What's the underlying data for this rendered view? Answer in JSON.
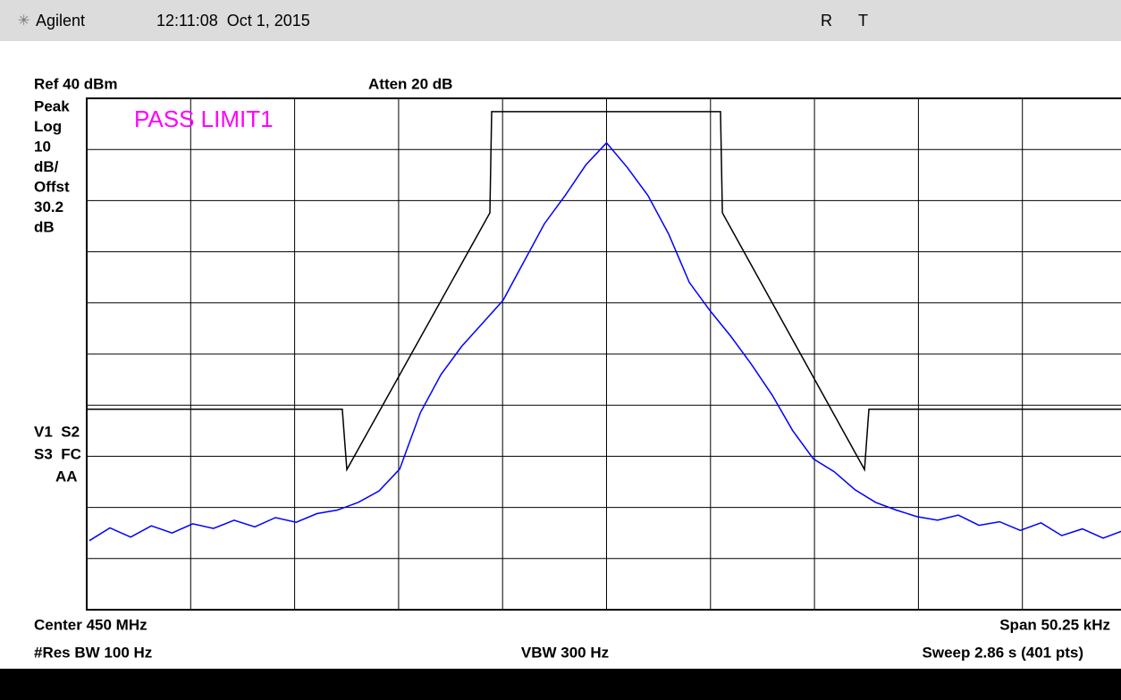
{
  "header": {
    "brand": "Agilent",
    "time": "12:11:08  Oct 1, 2015",
    "flags": [
      "R",
      "T"
    ]
  },
  "chart_data": {
    "type": "line",
    "ref": "Ref 40 dBm",
    "atten": "Atten 20 dB",
    "settings": [
      "Peak",
      "Log",
      "10",
      "dB/",
      "Offst",
      "30.2",
      "dB"
    ],
    "status": [
      "V1  S2",
      "S3  FC",
      "AA"
    ],
    "annotation": "PASS LIMIT1",
    "annotation_color": "#ff00ff",
    "footer": {
      "center": "Center 450 MHz",
      "span": "Span 50.25 kHz",
      "rbw": "#Res BW 100 Hz",
      "vbw": "VBW 300 Hz",
      "sweep": "Sweep 2.86 s (401 pts)"
    },
    "xlim": [
      -25.125,
      25.125
    ],
    "xticks": [
      -25.125,
      -20.1,
      -15.075,
      -10.05,
      -5.025,
      0,
      5.025,
      10.05,
      15.075,
      20.1,
      25.125
    ],
    "ylim": [
      -60,
      40
    ],
    "yticks": [
      -60,
      -50,
      -40,
      -30,
      -20,
      -10,
      0,
      10,
      20,
      30,
      40
    ],
    "grid": true,
    "series": [
      {
        "color": "#0000ff",
        "x": [
          -25,
          -24,
          -23,
          -22,
          -21,
          -20,
          -19,
          -18,
          -17,
          -16,
          -15,
          -14,
          -13,
          -12,
          -11,
          -10,
          -9,
          -8,
          -7,
          -6,
          -5,
          -4,
          -3,
          -2,
          -1,
          0,
          1,
          2,
          3,
          4,
          5,
          6,
          7,
          8,
          9,
          10,
          11,
          12,
          13,
          14,
          15,
          16,
          17,
          18,
          19,
          20,
          21,
          22,
          23,
          24,
          25
        ],
        "values": [
          -46.5,
          -44.0,
          -45.8,
          -43.6,
          -45.0,
          -43.2,
          -44.1,
          -42.5,
          -43.8,
          -42.0,
          -42.9,
          -41.2,
          -40.5,
          -39.0,
          -36.8,
          -32.5,
          -21.5,
          -14.0,
          -8.5,
          -4.0,
          0.5,
          8.0,
          15.5,
          21.0,
          27.0,
          31.3,
          26.5,
          21.0,
          13.5,
          4.0,
          -1.5,
          -6.5,
          -12.0,
          -18.0,
          -25.0,
          -30.5,
          -33.0,
          -36.5,
          -39.0,
          -40.5,
          -41.8,
          -42.5,
          -41.5,
          -43.5,
          -42.8,
          -44.5,
          -43.0,
          -45.5,
          -44.2,
          -46.0,
          -44.5
        ]
      },
      {
        "color": "#000000",
        "x": [
          -25.125,
          -12.77,
          -12.55,
          -5.64,
          -5.55,
          5.51,
          5.6,
          12.47,
          12.68,
          25.125
        ],
        "values": [
          -20.8,
          -20.8,
          -32.6,
          17.6,
          37.4,
          37.4,
          17.6,
          -32.6,
          -20.8,
          -20.8
        ]
      }
    ]
  }
}
